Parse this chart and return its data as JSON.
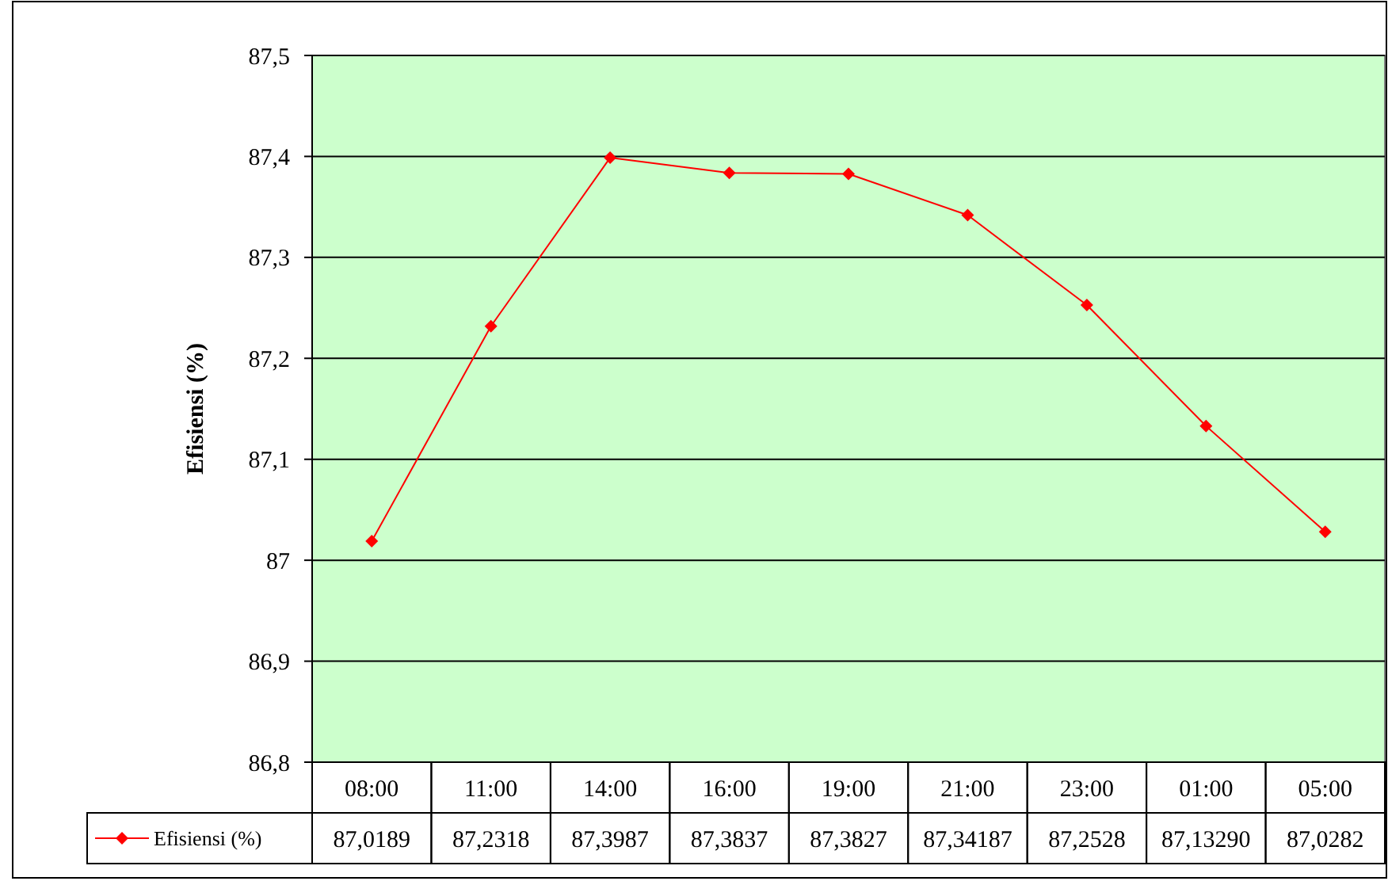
{
  "chart_data": {
    "type": "line",
    "ylabel": "Efisiensi (%)",
    "categories": [
      "08:00",
      "11:00",
      "14:00",
      "16:00",
      "19:00",
      "21:00",
      "23:00",
      "01:00",
      "05:00"
    ],
    "series": [
      {
        "name": "Efisiensi (%)",
        "color": "#ff0000",
        "values": [
          87.0189,
          87.2318,
          87.3987,
          87.3837,
          87.3827,
          87.34187,
          87.2528,
          87.1329,
          87.0282
        ],
        "value_labels": [
          "87,0189",
          "87,2318",
          "87,3987",
          "87,3837",
          "87,3827",
          "87,34187",
          "87,2528",
          "87,13290",
          "87,0282"
        ]
      }
    ],
    "ylim": [
      86.8,
      87.5
    ],
    "yticks": [
      {
        "value": 86.8,
        "label": "86,8"
      },
      {
        "value": 86.9,
        "label": "86,9"
      },
      87,
      {
        "value": 87.1,
        "label": "87,1"
      },
      {
        "value": 87.2,
        "label": "87,2"
      },
      {
        "value": 87.3,
        "label": "87,3"
      },
      {
        "value": 87.4,
        "label": "87,4"
      },
      {
        "value": 87.5,
        "label": "87,5"
      }
    ],
    "grid": "y",
    "legend": "bottom",
    "marker": "diamond",
    "line_style": "solid"
  }
}
